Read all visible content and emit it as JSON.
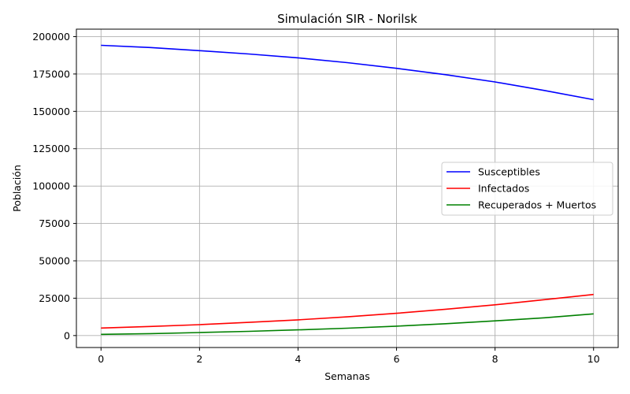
{
  "chart_data": {
    "type": "line",
    "title": "Simulación SIR - Norilsk",
    "xlabel": "Semanas",
    "ylabel": "Población",
    "xlim": [
      -0.5,
      10.5
    ],
    "ylim": [
      -8000,
      205000
    ],
    "xticks": [
      0,
      2,
      4,
      6,
      8,
      10
    ],
    "yticks": [
      0,
      25000,
      50000,
      75000,
      100000,
      125000,
      150000,
      175000,
      200000
    ],
    "grid": true,
    "legend_position": "center-right",
    "x": [
      0,
      1,
      2,
      3,
      4,
      5,
      6,
      7,
      8,
      9,
      10
    ],
    "series": [
      {
        "name": "Susceptibles",
        "color": "#0000ff",
        "values": [
          194200,
          192700,
          190600,
          188400,
          185800,
          182600,
          178800,
          174500,
          169700,
          164000,
          157800
        ]
      },
      {
        "name": "Infectados",
        "color": "#ff0000",
        "values": [
          5000,
          6100,
          7300,
          8800,
          10500,
          12500,
          14900,
          17600,
          20600,
          24000,
          27500
        ]
      },
      {
        "name": "Recuperados + Muertos",
        "color": "#008000",
        "values": [
          800,
          1300,
          2000,
          2800,
          3800,
          4900,
          6300,
          7900,
          9800,
          11900,
          14500
        ]
      }
    ]
  }
}
